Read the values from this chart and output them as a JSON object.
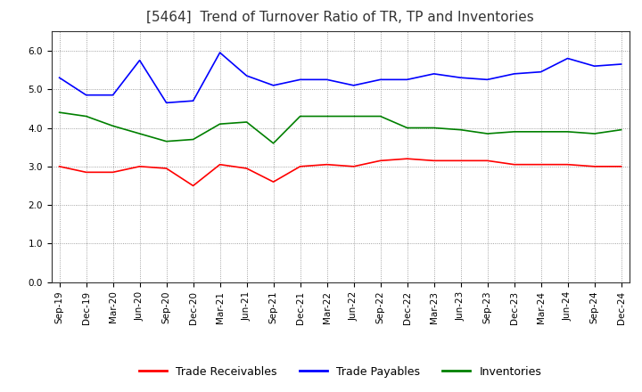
{
  "title": "[5464]  Trend of Turnover Ratio of TR, TP and Inventories",
  "x_labels": [
    "Sep-19",
    "Dec-19",
    "Mar-20",
    "Jun-20",
    "Sep-20",
    "Dec-20",
    "Mar-21",
    "Jun-21",
    "Sep-21",
    "Dec-21",
    "Mar-22",
    "Jun-22",
    "Sep-22",
    "Dec-22",
    "Mar-23",
    "Jun-23",
    "Sep-23",
    "Dec-23",
    "Mar-24",
    "Jun-24",
    "Sep-24",
    "Dec-24"
  ],
  "trade_receivables": [
    3.0,
    2.85,
    2.85,
    3.0,
    2.95,
    2.5,
    3.05,
    2.95,
    2.6,
    3.0,
    3.05,
    3.0,
    3.15,
    3.2,
    3.15,
    3.15,
    3.15,
    3.05,
    3.05,
    3.05,
    3.0,
    3.0
  ],
  "trade_payables": [
    5.3,
    4.85,
    4.85,
    5.75,
    4.65,
    4.7,
    5.95,
    5.35,
    5.1,
    5.25,
    5.25,
    5.1,
    5.25,
    5.25,
    5.4,
    5.3,
    5.25,
    5.4,
    5.45,
    5.8,
    5.6,
    5.65
  ],
  "inventories": [
    4.4,
    4.3,
    4.05,
    3.85,
    3.65,
    3.7,
    4.1,
    4.15,
    3.6,
    4.3,
    4.3,
    4.3,
    4.3,
    4.0,
    4.0,
    3.95,
    3.85,
    3.9,
    3.9,
    3.9,
    3.85,
    3.95
  ],
  "ylim": [
    0.0,
    6.5
  ],
  "yticks": [
    0.0,
    1.0,
    2.0,
    3.0,
    4.0,
    5.0,
    6.0
  ],
  "colors": {
    "trade_receivables": "#ff0000",
    "trade_payables": "#0000ff",
    "inventories": "#008000"
  },
  "legend_labels": [
    "Trade Receivables",
    "Trade Payables",
    "Inventories"
  ],
  "background_color": "#ffffff",
  "grid_color": "#888888",
  "title_fontsize": 11,
  "tick_fontsize": 7.5,
  "legend_fontsize": 9
}
